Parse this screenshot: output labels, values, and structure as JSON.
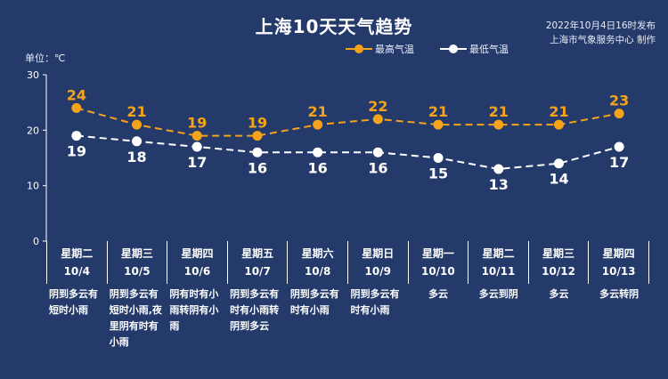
{
  "header": {
    "title": "上海10天天气趋势",
    "publish_time": "2022年10月4日16时发布",
    "publisher": "上海市气象服务中心 制作"
  },
  "colors": {
    "background": "#243a6b",
    "high": "#f5a31a",
    "low": "#ffffff"
  },
  "chart_data": {
    "type": "line",
    "unit_label": "单位：℃",
    "ylim": [
      0,
      30
    ],
    "yticks": [
      0,
      10,
      20,
      30
    ],
    "grid": false,
    "legend_position": "top-center",
    "categories": [
      "10/4",
      "10/5",
      "10/6",
      "10/7",
      "10/8",
      "10/9",
      "10/10",
      "10/11",
      "10/12",
      "10/13"
    ],
    "series": [
      {
        "name": "最高气温",
        "color": "#f5a31a",
        "values": [
          24,
          21,
          19,
          19,
          21,
          22,
          21,
          21,
          21,
          23
        ]
      },
      {
        "name": "最低气温",
        "color": "#ffffff",
        "values": [
          19,
          18,
          17,
          16,
          16,
          16,
          15,
          13,
          14,
          17
        ]
      }
    ]
  },
  "days": [
    {
      "weekday": "星期二",
      "date": "10/4",
      "weather": "阴到多云有短时小雨"
    },
    {
      "weekday": "星期三",
      "date": "10/5",
      "weather": "阴到多云有短时小雨,夜里阴有时有小雨"
    },
    {
      "weekday": "星期四",
      "date": "10/6",
      "weather": "阴有时有小雨转阴有小雨"
    },
    {
      "weekday": "星期五",
      "date": "10/7",
      "weather": "阴到多云有时有小雨转阴到多云"
    },
    {
      "weekday": "星期六",
      "date": "10/8",
      "weather": "阴到多云有时有小雨"
    },
    {
      "weekday": "星期日",
      "date": "10/9",
      "weather": "阴到多云有时有小雨"
    },
    {
      "weekday": "星期一",
      "date": "10/10",
      "weather": "多云"
    },
    {
      "weekday": "星期二",
      "date": "10/11",
      "weather": "多云到阴"
    },
    {
      "weekday": "星期三",
      "date": "10/12",
      "weather": "多云"
    },
    {
      "weekday": "星期四",
      "date": "10/13",
      "weather": "多云转阴"
    }
  ]
}
